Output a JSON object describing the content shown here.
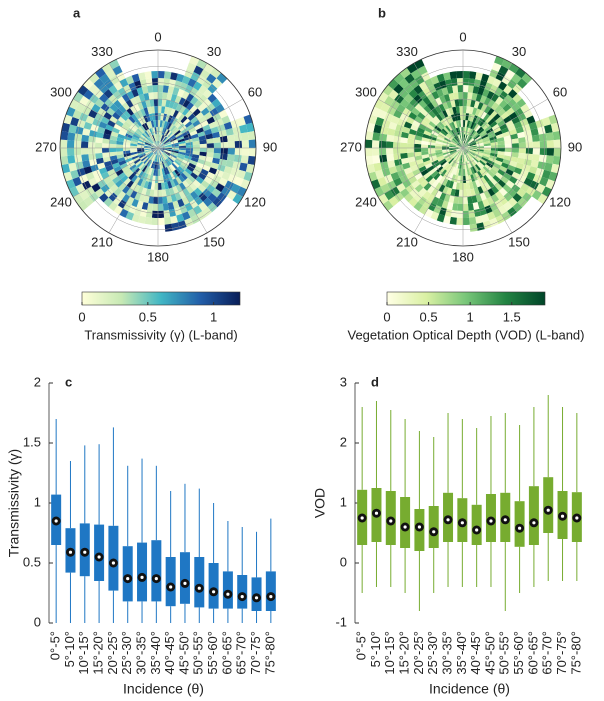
{
  "chart_data": [
    {
      "type": "polar-heatmap",
      "panel": "a",
      "theta_ticks": [
        0,
        30,
        60,
        90,
        120,
        150,
        180,
        210,
        240,
        270,
        300,
        330
      ],
      "colorbar_label": "Transmissivity (γ) (L-band)",
      "clim": [
        0,
        1.2
      ],
      "cticks": [
        0,
        0.5,
        1
      ],
      "colormap": [
        "#ffffd9",
        "#c7e9b4",
        "#41b6c4",
        "#225ea8",
        "#081d58"
      ]
    },
    {
      "type": "polar-heatmap",
      "panel": "b",
      "theta_ticks": [
        0,
        30,
        60,
        90,
        120,
        150,
        180,
        210,
        240,
        270,
        300,
        330
      ],
      "colorbar_label": "Vegetation Optical Depth (VOD) (L-band)",
      "clim": [
        0,
        1.9
      ],
      "cticks": [
        0,
        0.5,
        1,
        1.5
      ],
      "colormap": [
        "#ffffe5",
        "#d9f0a3",
        "#78c679",
        "#238443",
        "#004529"
      ]
    },
    {
      "type": "box",
      "panel": "c",
      "ylabel": "Transmissivity (γ)",
      "xlabel": "Incidence (θ)",
      "color": "#1f77c4",
      "categories": [
        "0°-5°",
        "5°-10°",
        "10°-15°",
        "15°-20°",
        "20°-25°",
        "25°-30°",
        "30°-35°",
        "35°-40°",
        "40°-45°",
        "45°-50°",
        "50°-55°",
        "55°-60°",
        "60°-65°",
        "65°-70°",
        "70°-75°",
        "75°-80°"
      ],
      "whislo": [
        0,
        0,
        0,
        0,
        0,
        0,
        0,
        0,
        0,
        0,
        0,
        0,
        0,
        0,
        0,
        0
      ],
      "q1": [
        0.65,
        0.42,
        0.39,
        0.35,
        0.27,
        0.18,
        0.18,
        0.18,
        0.14,
        0.16,
        0.13,
        0.12,
        0.12,
        0.12,
        0.1,
        0.1
      ],
      "median": [
        0.85,
        0.59,
        0.59,
        0.55,
        0.5,
        0.37,
        0.38,
        0.37,
        0.3,
        0.33,
        0.29,
        0.26,
        0.24,
        0.22,
        0.21,
        0.22
      ],
      "q3": [
        1.07,
        0.79,
        0.83,
        0.82,
        0.81,
        0.64,
        0.67,
        0.69,
        0.55,
        0.59,
        0.55,
        0.5,
        0.43,
        0.4,
        0.38,
        0.43
      ],
      "whishi": [
        1.7,
        1.35,
        1.48,
        1.49,
        1.63,
        1.31,
        1.37,
        1.31,
        1.1,
        1.16,
        1.12,
        1.0,
        0.85,
        0.8,
        0.76,
        0.87
      ],
      "ylim": [
        0,
        2
      ],
      "yticks": [
        0,
        0.5,
        1,
        1.5,
        2
      ]
    },
    {
      "type": "box",
      "panel": "d",
      "ylabel": "VOD",
      "xlabel": "Incidence (θ)",
      "color": "#77ac30",
      "categories": [
        "0°-5°",
        "5°-10°",
        "10°-15°",
        "15°-20°",
        "20°-25°",
        "25°-30°",
        "30°-35°",
        "35°-40°",
        "40°-45°",
        "45°-50°",
        "50°-55°",
        "55°-60°",
        "60°-65°",
        "65°-70°",
        "70°-75°",
        "75°-80°"
      ],
      "whislo": [
        -0.5,
        -0.4,
        -0.4,
        -0.5,
        -0.8,
        -0.5,
        -0.4,
        -0.4,
        -0.4,
        -0.4,
        -0.8,
        -0.5,
        -0.4,
        -0.3,
        -0.3,
        -0.3
      ],
      "q1": [
        0.3,
        0.35,
        0.3,
        0.25,
        0.2,
        0.25,
        0.35,
        0.35,
        0.3,
        0.35,
        0.35,
        0.27,
        0.3,
        0.5,
        0.4,
        0.35
      ],
      "median": [
        0.75,
        0.83,
        0.7,
        0.6,
        0.6,
        0.52,
        0.72,
        0.67,
        0.55,
        0.7,
        0.72,
        0.58,
        0.67,
        0.88,
        0.78,
        0.75
      ],
      "q3": [
        1.22,
        1.25,
        1.2,
        1.1,
        0.9,
        0.95,
        1.17,
        1.08,
        0.97,
        1.15,
        1.17,
        1.03,
        1.28,
        1.43,
        1.2,
        1.18
      ],
      "whishi": [
        2.6,
        2.7,
        2.55,
        2.4,
        2.2,
        2.1,
        2.5,
        2.4,
        2.25,
        2.45,
        2.5,
        2.3,
        2.6,
        2.8,
        2.6,
        2.5
      ],
      "ylim": [
        -1,
        3
      ],
      "yticks": [
        -1,
        0,
        1,
        2,
        3
      ]
    }
  ]
}
